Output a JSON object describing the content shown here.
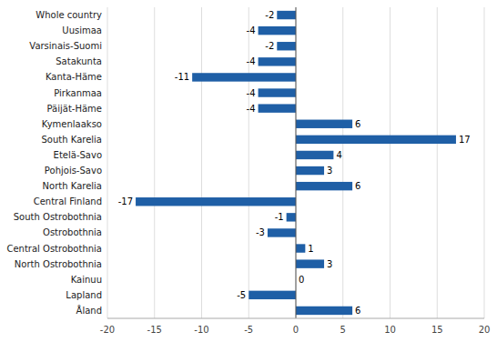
{
  "chart_data": {
    "type": "bar",
    "orientation": "horizontal",
    "categories": [
      "Whole country",
      "Uusimaa",
      "Varsinais-Suomi",
      "Satakunta",
      "Kanta-Häme",
      "Pirkanmaa",
      "Päijät-Häme",
      "Kymenlaakso",
      "South Karelia",
      "Etelä-Savo",
      "Pohjois-Savo",
      "North Karelia",
      "Central Finland",
      "South Ostrobothnia",
      "Ostrobothnia",
      "Central Ostrobothnia",
      "North Ostrobothnia",
      "Kainuu",
      "Lapland",
      "Åland"
    ],
    "values": [
      -2,
      -4,
      -2,
      -4,
      -11,
      -4,
      -4,
      6,
      17,
      4,
      3,
      6,
      -17,
      -1,
      -3,
      1,
      3,
      0,
      -5,
      6
    ],
    "color": "#1F5FA6",
    "xlim": [
      -20,
      20
    ],
    "xticks": [
      -20,
      -15,
      -10,
      -5,
      0,
      5,
      10,
      15,
      20
    ],
    "grid": true,
    "data_labels": true
  }
}
